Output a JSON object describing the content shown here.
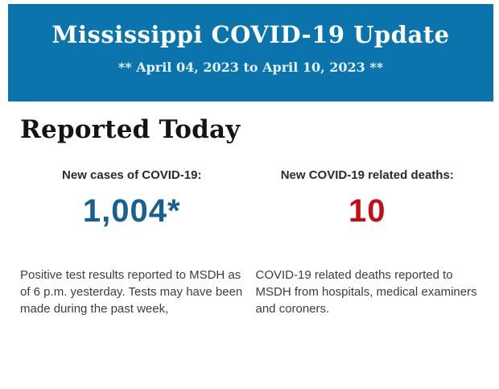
{
  "banner": {
    "title": "Mississippi COVID-19 Update",
    "subtitle": "** April 04, 2023 to April 10, 2023 **",
    "bg_color": "#0b74ad"
  },
  "section": {
    "heading": "Reported Today"
  },
  "stats": {
    "cases": {
      "label": "New cases of COVID-19:",
      "value": "1,004*",
      "color": "#16618f",
      "description": "Positive test results reported to MSDH as of 6 p.m. yesterday. Tests may have been made during the past week,"
    },
    "deaths": {
      "label": "New COVID-19 related deaths:",
      "value": "10",
      "color": "#c30e15",
      "description": "COVID-19 related deaths reported to MSDH from hospitals, medical examiners and coroners."
    }
  }
}
